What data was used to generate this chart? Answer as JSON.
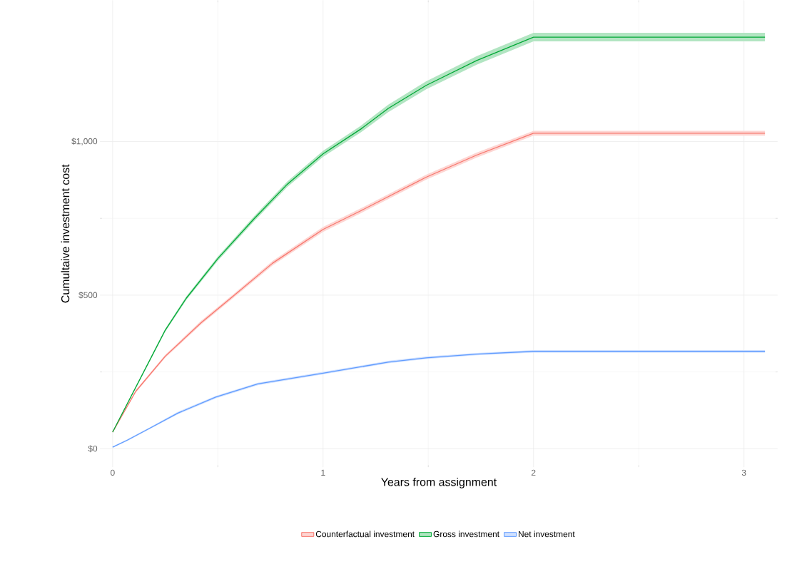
{
  "chart_data": {
    "type": "line",
    "xlabel": "Years from assignment",
    "ylabel": "Cumultaive investment cost",
    "xlim": [
      -0.06,
      3.16
    ],
    "ylim": [
      -60,
      1460
    ],
    "xticks": [
      0,
      1,
      2,
      3
    ],
    "yticks": [
      {
        "value": 0,
        "label": "$0"
      },
      {
        "value": 500,
        "label": "$500"
      },
      {
        "value": 1000,
        "label": "$1,000"
      }
    ],
    "grid": true,
    "legend": "bottom",
    "marker": "none",
    "line_style": "solid",
    "series": [
      {
        "name": "Counterfactual investment",
        "color": "#f8766d",
        "x": [
          0,
          0.11,
          0.25,
          0.42,
          0.57,
          0.76,
          1.0,
          1.18,
          1.49,
          1.73,
          2.0,
          3.1
        ],
        "values": [
          54,
          187,
          301,
          410,
          495,
          604,
          714,
          775,
          884,
          956,
          1027,
          1027
        ],
        "lower": [
          52,
          183,
          296,
          404,
          489,
          597,
          706,
          767,
          876,
          948,
          1019,
          1019
        ],
        "upper": [
          56,
          191,
          306,
          416,
          501,
          611,
          722,
          783,
          892,
          964,
          1035,
          1035
        ]
      },
      {
        "name": "Gross investment",
        "color": "#00a835",
        "x": [
          0,
          0.25,
          0.35,
          0.5,
          0.67,
          0.83,
          1.0,
          1.18,
          1.31,
          1.49,
          1.73,
          2.0,
          3.1
        ],
        "values": [
          54,
          386,
          490,
          619,
          747,
          861,
          960,
          1041,
          1108,
          1183,
          1264,
          1340,
          1340
        ],
        "lower": [
          52,
          381,
          484,
          612,
          739,
          852,
          950,
          1030,
          1096,
          1170,
          1250,
          1326,
          1326
        ],
        "upper": [
          56,
          391,
          496,
          626,
          755,
          870,
          970,
          1052,
          1120,
          1196,
          1278,
          1354,
          1354
        ]
      },
      {
        "name": "Net investment",
        "color": "#619cff",
        "x": [
          0,
          0.07,
          0.18,
          0.31,
          0.49,
          0.69,
          1.0,
          1.31,
          1.49,
          1.73,
          2.0,
          3.1
        ],
        "values": [
          5,
          28,
          68,
          116,
          168,
          211,
          246,
          282,
          296,
          308,
          317,
          317
        ],
        "lower": [
          3,
          25,
          65,
          112,
          164,
          207,
          242,
          278,
          292,
          304,
          313,
          313
        ],
        "upper": [
          7,
          31,
          71,
          120,
          172,
          215,
          250,
          286,
          300,
          312,
          321,
          321
        ]
      }
    ]
  }
}
